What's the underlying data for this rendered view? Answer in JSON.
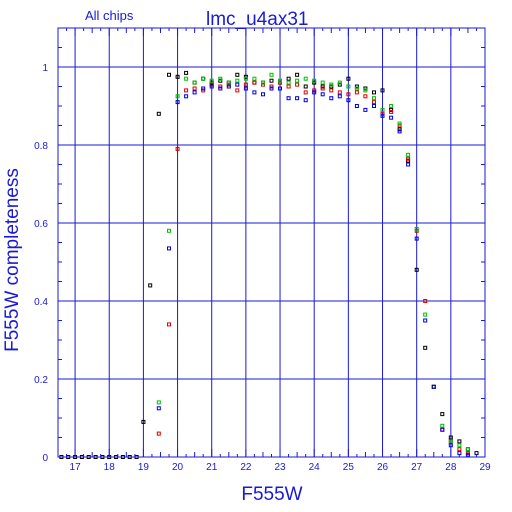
{
  "chart_data": {
    "type": "scatter",
    "title": "lmc_u4ax31",
    "subtitle": "All chips",
    "xlabel": "F555W",
    "ylabel": "F555W completeness",
    "xlim": [
      16.5,
      29
    ],
    "ylim": [
      0,
      1.1
    ],
    "x_ticks": [
      17,
      18,
      19,
      20,
      21,
      22,
      23,
      24,
      25,
      26,
      27,
      28,
      29
    ],
    "y_ticks": [
      0,
      0.2,
      0.4,
      0.6,
      0.8,
      1
    ],
    "y_tick_labels": [
      "0",
      "0.2",
      "0.4",
      "0.6",
      "0.8",
      "1"
    ],
    "grid": true,
    "axis_color": "#1a1ad6",
    "series": [
      {
        "color": "#000000",
        "points": [
          [
            16.6,
            0
          ],
          [
            16.8,
            0
          ],
          [
            17.0,
            0
          ],
          [
            17.2,
            0
          ],
          [
            17.4,
            0
          ],
          [
            17.6,
            0
          ],
          [
            17.8,
            0
          ],
          [
            18.0,
            0
          ],
          [
            18.2,
            0
          ],
          [
            18.4,
            0
          ],
          [
            18.6,
            0
          ],
          [
            18.8,
            0
          ],
          [
            19.0,
            0.09
          ],
          [
            19.2,
            0.44
          ],
          [
            19.45,
            0.88
          ],
          [
            19.75,
            0.98
          ],
          [
            20.0,
            0.975
          ],
          [
            20.25,
            0.985
          ],
          [
            20.5,
            0.96
          ],
          [
            20.75,
            0.97
          ],
          [
            21.0,
            0.96
          ],
          [
            21.25,
            0.965
          ],
          [
            21.5,
            0.96
          ],
          [
            21.75,
            0.98
          ],
          [
            22.0,
            0.975
          ],
          [
            22.25,
            0.96
          ],
          [
            22.5,
            0.96
          ],
          [
            22.75,
            0.965
          ],
          [
            23.0,
            0.96
          ],
          [
            23.25,
            0.97
          ],
          [
            23.5,
            0.98
          ],
          [
            23.75,
            0.95
          ],
          [
            24.0,
            0.96
          ],
          [
            24.25,
            0.95
          ],
          [
            24.5,
            0.95
          ],
          [
            24.75,
            0.955
          ],
          [
            25.0,
            0.97
          ],
          [
            25.25,
            0.95
          ],
          [
            25.5,
            0.945
          ],
          [
            25.75,
            0.935
          ],
          [
            26.0,
            0.94
          ],
          [
            26.25,
            0.89
          ],
          [
            26.5,
            0.84
          ],
          [
            26.75,
            0.76
          ],
          [
            27.0,
            0.48
          ],
          [
            27.25,
            0.28
          ],
          [
            27.5,
            0.18
          ],
          [
            27.75,
            0.11
          ],
          [
            28.0,
            0.05
          ],
          [
            28.25,
            0.04
          ],
          [
            28.5,
            0.02
          ],
          [
            28.75,
            0.01
          ]
        ]
      },
      {
        "color": "#e00000",
        "points": [
          [
            19.45,
            0.06
          ],
          [
            19.75,
            0.34
          ],
          [
            20.0,
            0.79
          ],
          [
            20.25,
            0.94
          ],
          [
            20.5,
            0.945
          ],
          [
            20.75,
            0.94
          ],
          [
            21.0,
            0.955
          ],
          [
            21.25,
            0.95
          ],
          [
            21.5,
            0.955
          ],
          [
            21.75,
            0.94
          ],
          [
            22.0,
            0.955
          ],
          [
            22.25,
            0.96
          ],
          [
            22.5,
            0.955
          ],
          [
            22.75,
            0.95
          ],
          [
            23.0,
            0.96
          ],
          [
            23.25,
            0.95
          ],
          [
            23.5,
            0.955
          ],
          [
            23.75,
            0.935
          ],
          [
            24.0,
            0.94
          ],
          [
            24.25,
            0.945
          ],
          [
            24.5,
            0.94
          ],
          [
            24.75,
            0.935
          ],
          [
            25.0,
            0.93
          ],
          [
            25.25,
            0.935
          ],
          [
            25.5,
            0.925
          ],
          [
            25.75,
            0.91
          ],
          [
            26.0,
            0.88
          ],
          [
            26.25,
            0.885
          ],
          [
            26.5,
            0.85
          ],
          [
            26.75,
            0.765
          ],
          [
            27.0,
            0.58
          ],
          [
            27.25,
            0.4
          ],
          [
            27.5,
            0.18
          ],
          [
            27.75,
            0.07
          ],
          [
            28.0,
            0.04
          ],
          [
            28.25,
            0.02
          ],
          [
            28.5,
            0.01
          ]
        ]
      },
      {
        "color": "#00c000",
        "points": [
          [
            19.45,
            0.14
          ],
          [
            19.75,
            0.58
          ],
          [
            20.0,
            0.925
          ],
          [
            20.25,
            0.97
          ],
          [
            20.5,
            0.96
          ],
          [
            20.75,
            0.97
          ],
          [
            21.0,
            0.965
          ],
          [
            21.25,
            0.97
          ],
          [
            21.5,
            0.96
          ],
          [
            21.75,
            0.965
          ],
          [
            22.0,
            0.97
          ],
          [
            22.25,
            0.97
          ],
          [
            22.5,
            0.96
          ],
          [
            22.75,
            0.98
          ],
          [
            23.0,
            0.965
          ],
          [
            23.25,
            0.96
          ],
          [
            23.5,
            0.965
          ],
          [
            23.75,
            0.97
          ],
          [
            24.0,
            0.965
          ],
          [
            24.25,
            0.96
          ],
          [
            24.5,
            0.955
          ],
          [
            24.75,
            0.96
          ],
          [
            25.0,
            0.95
          ],
          [
            25.25,
            0.945
          ],
          [
            25.5,
            0.94
          ],
          [
            25.75,
            0.92
          ],
          [
            26.0,
            0.89
          ],
          [
            26.25,
            0.9
          ],
          [
            26.5,
            0.855
          ],
          [
            26.75,
            0.775
          ],
          [
            27.0,
            0.585
          ],
          [
            27.25,
            0.365
          ],
          [
            27.5,
            0.18
          ],
          [
            27.75,
            0.08
          ],
          [
            28.0,
            0.04
          ],
          [
            28.25,
            0.03
          ],
          [
            28.5,
            0.02
          ]
        ]
      },
      {
        "color": "#0000e0",
        "points": [
          [
            19.45,
            0.125
          ],
          [
            19.75,
            0.535
          ],
          [
            20.0,
            0.91
          ],
          [
            20.25,
            0.925
          ],
          [
            20.5,
            0.935
          ],
          [
            20.75,
            0.945
          ],
          [
            21.0,
            0.95
          ],
          [
            21.25,
            0.945
          ],
          [
            21.5,
            0.95
          ],
          [
            21.75,
            0.955
          ],
          [
            22.0,
            0.945
          ],
          [
            22.25,
            0.935
          ],
          [
            22.5,
            0.93
          ],
          [
            22.75,
            0.945
          ],
          [
            23.0,
            0.945
          ],
          [
            23.25,
            0.92
          ],
          [
            23.5,
            0.92
          ],
          [
            23.75,
            0.915
          ],
          [
            24.0,
            0.935
          ],
          [
            24.25,
            0.93
          ],
          [
            24.5,
            0.92
          ],
          [
            24.75,
            0.925
          ],
          [
            25.0,
            0.915
          ],
          [
            25.25,
            0.9
          ],
          [
            25.5,
            0.89
          ],
          [
            25.75,
            0.9
          ],
          [
            26.0,
            0.875
          ],
          [
            26.25,
            0.87
          ],
          [
            26.5,
            0.835
          ],
          [
            26.75,
            0.75
          ],
          [
            27.0,
            0.56
          ],
          [
            27.25,
            0.35
          ],
          [
            27.5,
            0.18
          ],
          [
            27.75,
            0.07
          ],
          [
            28.0,
            0.03
          ],
          [
            28.25,
            0.01
          ],
          [
            28.5,
            0.005
          ]
        ]
      }
    ]
  }
}
